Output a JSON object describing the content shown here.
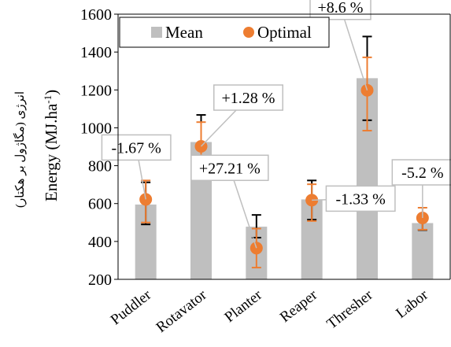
{
  "chart_data": {
    "type": "bar",
    "categories": [
      "Puddler",
      "Rotavator",
      "Planter",
      "Reaper",
      "Thresher",
      "Labor"
    ],
    "series": [
      {
        "name": "Mean",
        "values": [
          595,
          925,
          478,
          622,
          1262,
          497
        ],
        "error_low": [
          490,
          780,
          420,
          515,
          1040,
          460
        ],
        "error_high": [
          712,
          1068,
          540,
          722,
          1482,
          540
        ],
        "color": "#bfbfbf",
        "error_color": "#000000"
      },
      {
        "name": "Optimal",
        "values": [
          622,
          902,
          365,
          618,
          1198,
          524
        ],
        "error_low": [
          500,
          778,
          262,
          508,
          985,
          462
        ],
        "error_high": [
          722,
          1030,
          468,
          702,
          1372,
          578
        ],
        "color": "#ed7d31",
        "error_color": "#ed7d31"
      }
    ],
    "annotations": [
      "-1.67 %",
      "+1.28 %",
      "+27.21 %",
      "-1.33 %",
      "+8.6 %",
      "-5.2 %"
    ],
    "ylabel": "Energy (MJ.ha",
    "ylabel_sup": "-1",
    "ylabel_close": ")",
    "ylabel_secondary": "انرژی (مگاژول بر هکتار)",
    "ylim": [
      200,
      1600
    ],
    "yticks": [
      200,
      400,
      600,
      800,
      1000,
      1200,
      1400,
      1600
    ],
    "legend_position": "top",
    "grid": false
  }
}
